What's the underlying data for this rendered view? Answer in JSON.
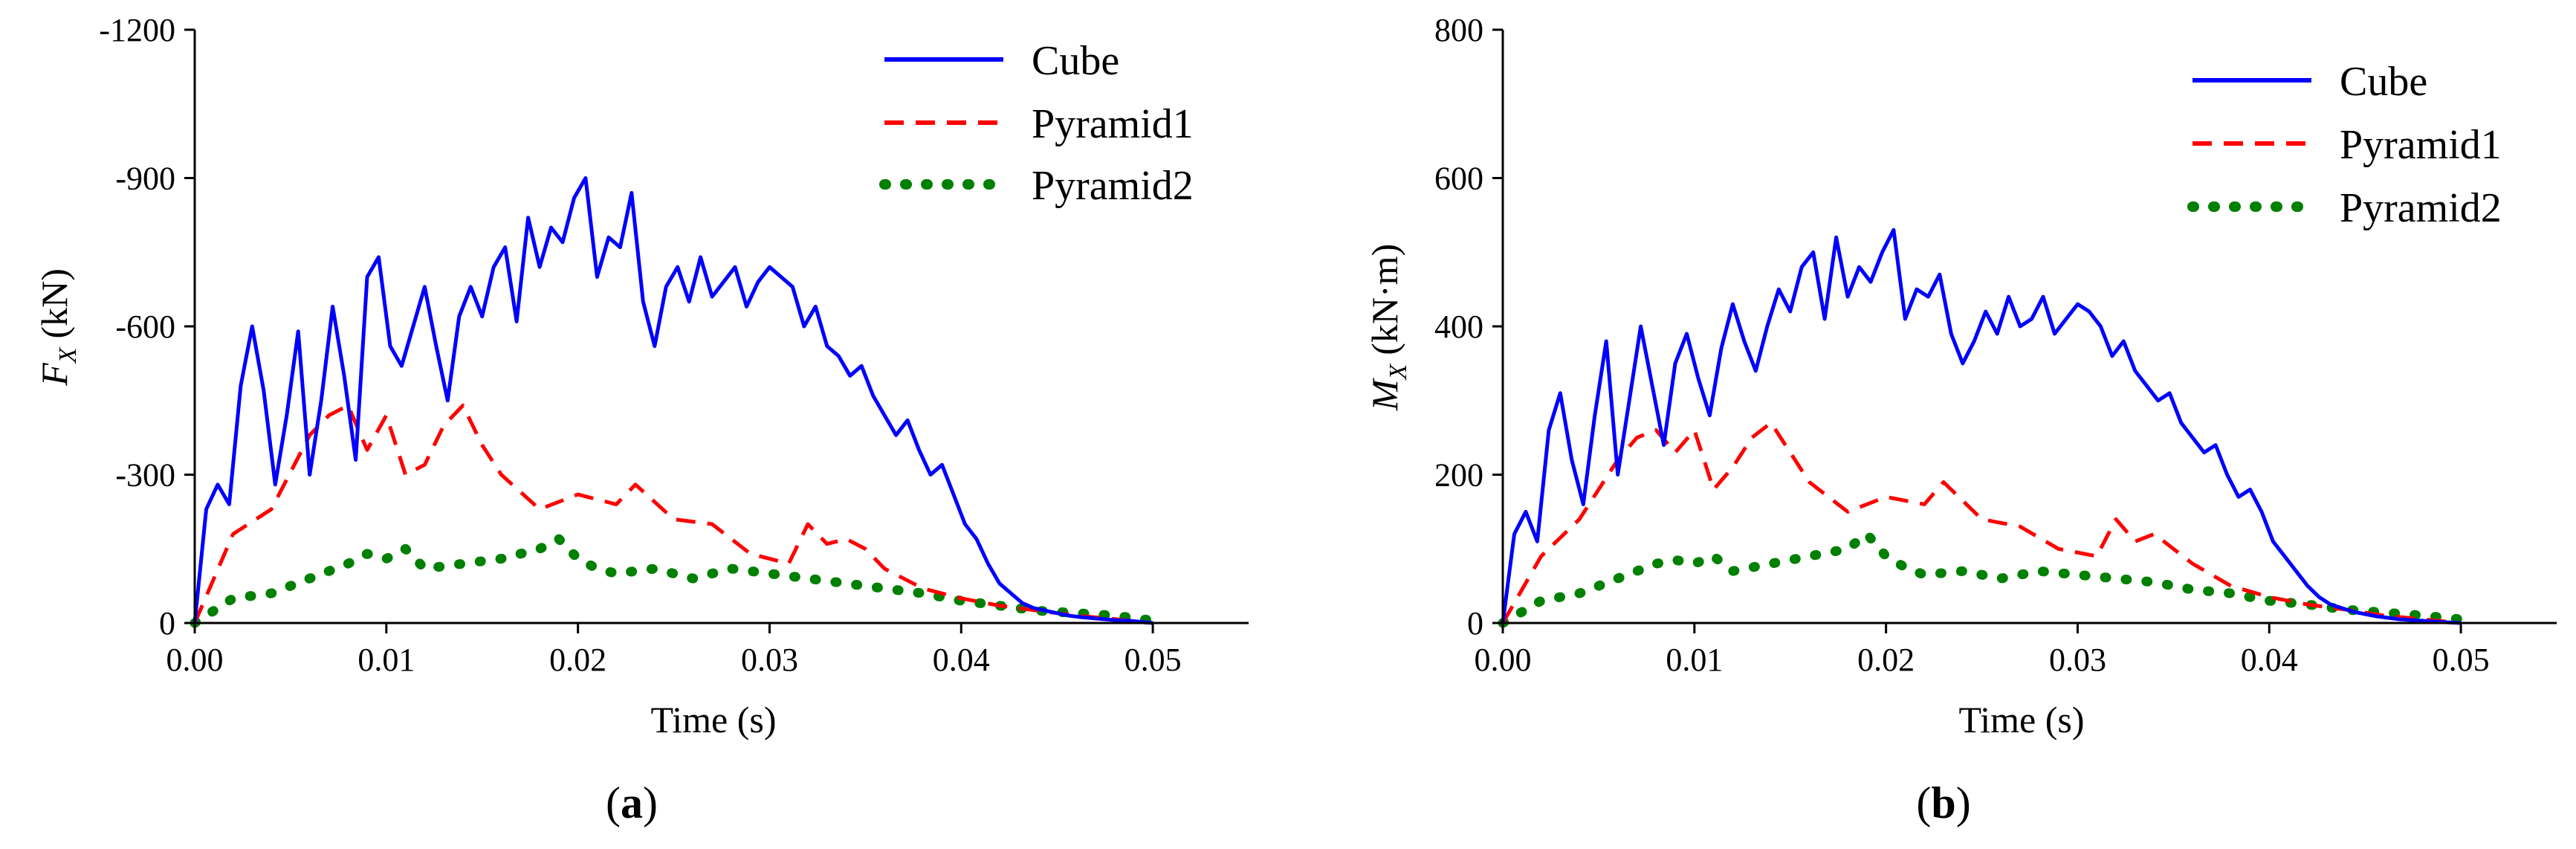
{
  "chart_data": [
    {
      "type": "line",
      "panel": "(a)",
      "panel_letter": "a",
      "title": "",
      "xlabel": "Time (s)",
      "ylabel_main": "F",
      "ylabel_sub": "X",
      "ylabel_unit": "(kN)",
      "xlim": [
        0,
        0.055
      ],
      "ylim": [
        0,
        -1200
      ],
      "xticks": [
        0,
        0.01,
        0.02,
        0.03,
        0.04,
        0.05
      ],
      "xtick_labels": [
        "0.00",
        "0.01",
        "0.02",
        "0.03",
        "0.04",
        "0.05"
      ],
      "yticks": [
        0,
        -300,
        -600,
        -900,
        -1200
      ],
      "ytick_labels": [
        "0",
        "-300",
        "-600",
        "-900",
        "-1200"
      ],
      "grid": false,
      "legend_position": "top-right",
      "series": [
        {
          "name": "Cube",
          "color": "#0000ff",
          "style": "solid",
          "x": [
            0,
            0.0006,
            0.0012,
            0.0018,
            0.0024,
            0.003,
            0.0036,
            0.0042,
            0.0048,
            0.0054,
            0.006,
            0.0066,
            0.0072,
            0.0078,
            0.0084,
            0.009,
            0.0096,
            0.0102,
            0.0108,
            0.0114,
            0.012,
            0.0126,
            0.0132,
            0.0138,
            0.0144,
            0.015,
            0.0156,
            0.0162,
            0.0168,
            0.0174,
            0.018,
            0.0186,
            0.0192,
            0.0198,
            0.0204,
            0.021,
            0.0216,
            0.0222,
            0.0228,
            0.0234,
            0.024,
            0.0246,
            0.0252,
            0.0258,
            0.0264,
            0.027,
            0.0276,
            0.0282,
            0.0288,
            0.0294,
            0.03,
            0.0306,
            0.0312,
            0.0318,
            0.0324,
            0.033,
            0.0336,
            0.0342,
            0.0348,
            0.0354,
            0.036,
            0.0366,
            0.0372,
            0.0378,
            0.0384,
            0.039,
            0.0396,
            0.0402,
            0.0408,
            0.0414,
            0.042,
            0.0426,
            0.0432,
            0.0438,
            0.0444,
            0.045,
            0.0456,
            0.0462,
            0.0468,
            0.0474,
            0.048,
            0.0486,
            0.0492,
            0.05
          ],
          "values": [
            0,
            -230,
            -280,
            -240,
            -480,
            -600,
            -470,
            -280,
            -420,
            -590,
            -300,
            -450,
            -640,
            -500,
            -330,
            -700,
            -740,
            -560,
            -520,
            -600,
            -680,
            -560,
            -450,
            -620,
            -680,
            -620,
            -720,
            -760,
            -610,
            -820,
            -720,
            -800,
            -770,
            -860,
            -900,
            -700,
            -780,
            -760,
            -870,
            -650,
            -560,
            -680,
            -720,
            -650,
            -740,
            -660,
            -690,
            -720,
            -640,
            -690,
            -720,
            -700,
            -680,
            -600,
            -640,
            -560,
            -540,
            -500,
            -520,
            -460,
            -420,
            -380,
            -410,
            -350,
            -300,
            -320,
            -260,
            -200,
            -170,
            -120,
            -80,
            -60,
            -40,
            -30,
            -25,
            -20,
            -15,
            -12,
            -10,
            -8,
            -6,
            -5,
            -3,
            0
          ]
        },
        {
          "name": "Pyramid1",
          "color": "#ff0000",
          "style": "dashed",
          "x": [
            0,
            0.002,
            0.004,
            0.006,
            0.007,
            0.008,
            0.009,
            0.01,
            0.011,
            0.012,
            0.013,
            0.014,
            0.015,
            0.016,
            0.018,
            0.02,
            0.022,
            0.023,
            0.025,
            0.027,
            0.029,
            0.031,
            0.032,
            0.033,
            0.034,
            0.035,
            0.036,
            0.038,
            0.04,
            0.042,
            0.044,
            0.046,
            0.048,
            0.05
          ],
          "values": [
            0,
            -180,
            -230,
            -380,
            -420,
            -440,
            -350,
            -420,
            -300,
            -320,
            -400,
            -440,
            -360,
            -300,
            -230,
            -260,
            -240,
            -280,
            -210,
            -200,
            -140,
            -120,
            -200,
            -160,
            -170,
            -150,
            -110,
            -70,
            -50,
            -35,
            -25,
            -15,
            -8,
            0
          ]
        },
        {
          "name": "Pyramid2",
          "color": "#008000",
          "style": "dotted",
          "x": [
            0,
            0.002,
            0.004,
            0.006,
            0.008,
            0.009,
            0.01,
            0.011,
            0.012,
            0.014,
            0.016,
            0.018,
            0.019,
            0.02,
            0.021,
            0.022,
            0.024,
            0.026,
            0.028,
            0.03,
            0.032,
            0.034,
            0.036,
            0.038,
            0.04,
            0.042,
            0.044,
            0.046,
            0.048,
            0.05
          ],
          "values": [
            0,
            -50,
            -60,
            -90,
            -120,
            -140,
            -130,
            -150,
            -110,
            -120,
            -130,
            -150,
            -170,
            -130,
            -110,
            -100,
            -110,
            -90,
            -110,
            -100,
            -90,
            -80,
            -70,
            -60,
            -45,
            -35,
            -25,
            -20,
            -15,
            -5
          ]
        }
      ]
    },
    {
      "type": "line",
      "panel": "(b)",
      "panel_letter": "b",
      "title": "",
      "xlabel": "Time (s)",
      "ylabel_main": "M",
      "ylabel_sub": "X",
      "ylabel_unit": "(kN·m)",
      "xlim": [
        0,
        0.055
      ],
      "ylim": [
        0,
        800
      ],
      "xticks": [
        0,
        0.01,
        0.02,
        0.03,
        0.04,
        0.05
      ],
      "xtick_labels": [
        "0.00",
        "0.01",
        "0.02",
        "0.03",
        "0.04",
        "0.05"
      ],
      "yticks": [
        0,
        200,
        400,
        600,
        800
      ],
      "ytick_labels": [
        "0",
        "200",
        "400",
        "600",
        "800"
      ],
      "grid": false,
      "legend_position": "top-right",
      "series": [
        {
          "name": "Cube",
          "color": "#0000ff",
          "style": "solid",
          "x": [
            0,
            0.0006,
            0.0012,
            0.0018,
            0.0024,
            0.003,
            0.0036,
            0.0042,
            0.0048,
            0.0054,
            0.006,
            0.0066,
            0.0072,
            0.0078,
            0.0084,
            0.009,
            0.0096,
            0.0102,
            0.0108,
            0.0114,
            0.012,
            0.0126,
            0.0132,
            0.0138,
            0.0144,
            0.015,
            0.0156,
            0.0162,
            0.0168,
            0.0174,
            0.018,
            0.0186,
            0.0192,
            0.0198,
            0.0204,
            0.021,
            0.0216,
            0.0222,
            0.0228,
            0.0234,
            0.024,
            0.0246,
            0.0252,
            0.0258,
            0.0264,
            0.027,
            0.0276,
            0.0282,
            0.0288,
            0.0294,
            0.03,
            0.0306,
            0.0312,
            0.0318,
            0.0324,
            0.033,
            0.0336,
            0.0342,
            0.0348,
            0.0354,
            0.036,
            0.0366,
            0.0372,
            0.0378,
            0.0384,
            0.039,
            0.0396,
            0.0402,
            0.0408,
            0.0414,
            0.042,
            0.0426,
            0.0432,
            0.0438,
            0.0444,
            0.045,
            0.0456,
            0.0462,
            0.0468,
            0.0474,
            0.048,
            0.0486,
            0.0492,
            0.05
          ],
          "values": [
            0,
            120,
            150,
            110,
            260,
            310,
            220,
            160,
            280,
            380,
            200,
            300,
            400,
            320,
            240,
            350,
            390,
            330,
            280,
            370,
            430,
            380,
            340,
            400,
            450,
            420,
            480,
            500,
            410,
            520,
            440,
            480,
            460,
            500,
            530,
            410,
            450,
            440,
            470,
            390,
            350,
            380,
            420,
            390,
            440,
            400,
            410,
            440,
            390,
            410,
            430,
            420,
            400,
            360,
            380,
            340,
            320,
            300,
            310,
            270,
            250,
            230,
            240,
            200,
            170,
            180,
            150,
            110,
            90,
            70,
            50,
            35,
            25,
            20,
            15,
            12,
            9,
            7,
            5,
            4,
            3,
            2,
            1,
            0
          ]
        },
        {
          "name": "Pyramid1",
          "color": "#ff0000",
          "style": "dashed",
          "x": [
            0,
            0.002,
            0.004,
            0.006,
            0.007,
            0.008,
            0.009,
            0.01,
            0.011,
            0.012,
            0.013,
            0.014,
            0.015,
            0.016,
            0.018,
            0.02,
            0.022,
            0.023,
            0.025,
            0.027,
            0.029,
            0.031,
            0.032,
            0.033,
            0.034,
            0.035,
            0.036,
            0.038,
            0.04,
            0.042,
            0.044,
            0.046,
            0.048,
            0.05
          ],
          "values": [
            0,
            90,
            140,
            220,
            250,
            260,
            230,
            260,
            180,
            210,
            250,
            270,
            230,
            190,
            150,
            170,
            160,
            190,
            140,
            130,
            100,
            90,
            140,
            110,
            120,
            100,
            80,
            50,
            35,
            25,
            18,
            10,
            5,
            0
          ]
        },
        {
          "name": "Pyramid2",
          "color": "#008000",
          "style": "dotted",
          "x": [
            0,
            0.002,
            0.004,
            0.006,
            0.008,
            0.009,
            0.01,
            0.011,
            0.012,
            0.014,
            0.016,
            0.018,
            0.019,
            0.02,
            0.021,
            0.022,
            0.024,
            0.026,
            0.028,
            0.03,
            0.032,
            0.034,
            0.036,
            0.038,
            0.04,
            0.042,
            0.044,
            0.046,
            0.048,
            0.05
          ],
          "values": [
            0,
            30,
            40,
            60,
            80,
            85,
            80,
            90,
            70,
            80,
            90,
            100,
            120,
            90,
            75,
            65,
            70,
            60,
            70,
            65,
            60,
            55,
            45,
            40,
            30,
            25,
            18,
            14,
            10,
            5
          ]
        }
      ]
    }
  ]
}
